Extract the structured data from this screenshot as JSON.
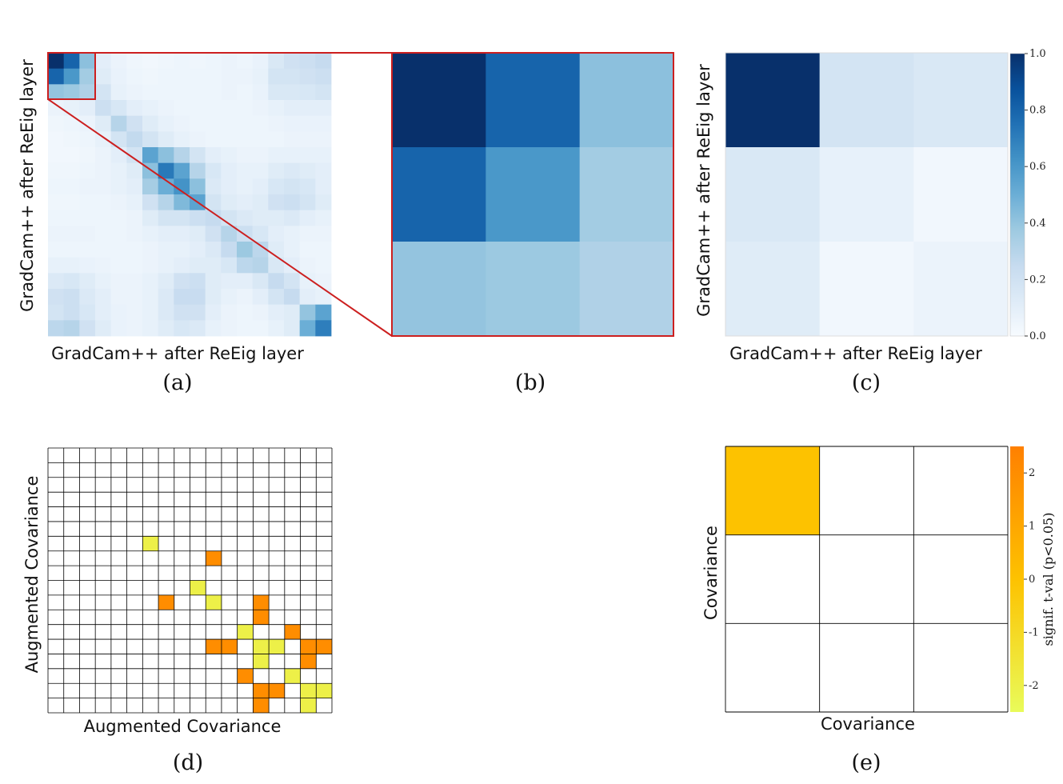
{
  "panels": {
    "a": {
      "caption": "(a)",
      "xlabel": "GradCam++ after ReEig layer",
      "ylabel": "GradCam++ after ReEig layer"
    },
    "b": {
      "caption": "(b)"
    },
    "c": {
      "caption": "(c)",
      "xlabel": "GradCam++ after ReEig layer",
      "ylabel": "GradCam++ after ReEig layer",
      "colorbar_ticks": [
        "1.0",
        "0.8",
        "0.6",
        "0.4",
        "0.2",
        "0.0"
      ]
    },
    "d": {
      "caption": "(d)",
      "xlabel": "Augmented Covariance",
      "ylabel": "Augmented Covariance"
    },
    "e": {
      "caption": "(e)",
      "xlabel": "Covariance",
      "ylabel": "Covariance",
      "colorbar_label": "signif. t-val (p<0.05)",
      "colorbar_ticks": [
        "2",
        "1",
        "0",
        "-1",
        "-2"
      ]
    }
  },
  "colors": {
    "heatmap_low": "#f7fbff",
    "heatmap_high": "#08306b",
    "highlight_box": "#cc1f1f",
    "grid_line": "#000000",
    "tval_neg": "#e9fb5a",
    "tval_zero": "#fdc200",
    "tval_pos": "#ff8000"
  },
  "chart_data": [
    {
      "panel": "a",
      "type": "heatmap",
      "colormap": "Blues",
      "zlim": [
        0,
        1
      ],
      "highlight": {
        "rows": [
          0,
          2
        ],
        "cols": [
          0,
          2
        ]
      },
      "z": [
        [
          1.0,
          0.8,
          0.42,
          0.1,
          0.06,
          0.04,
          0.03,
          0.04,
          0.05,
          0.04,
          0.05,
          0.06,
          0.05,
          0.07,
          0.15,
          0.2,
          0.22,
          0.25
        ],
        [
          0.8,
          0.6,
          0.36,
          0.12,
          0.07,
          0.05,
          0.04,
          0.05,
          0.05,
          0.05,
          0.05,
          0.06,
          0.06,
          0.08,
          0.18,
          0.18,
          0.2,
          0.22
        ],
        [
          0.4,
          0.38,
          0.32,
          0.18,
          0.08,
          0.06,
          0.05,
          0.05,
          0.05,
          0.05,
          0.05,
          0.06,
          0.05,
          0.07,
          0.15,
          0.15,
          0.16,
          0.18
        ],
        [
          0.06,
          0.08,
          0.1,
          0.22,
          0.16,
          0.1,
          0.08,
          0.06,
          0.05,
          0.05,
          0.05,
          0.05,
          0.05,
          0.06,
          0.08,
          0.1,
          0.1,
          0.1
        ],
        [
          0.04,
          0.05,
          0.06,
          0.12,
          0.3,
          0.2,
          0.12,
          0.08,
          0.06,
          0.05,
          0.05,
          0.05,
          0.05,
          0.05,
          0.06,
          0.07,
          0.07,
          0.07
        ],
        [
          0.03,
          0.04,
          0.05,
          0.08,
          0.18,
          0.26,
          0.18,
          0.12,
          0.08,
          0.06,
          0.05,
          0.05,
          0.05,
          0.05,
          0.05,
          0.06,
          0.06,
          0.06
        ],
        [
          0.03,
          0.03,
          0.04,
          0.06,
          0.1,
          0.18,
          0.55,
          0.42,
          0.3,
          0.18,
          0.1,
          0.08,
          0.06,
          0.06,
          0.08,
          0.08,
          0.08,
          0.08
        ],
        [
          0.04,
          0.04,
          0.05,
          0.06,
          0.08,
          0.12,
          0.42,
          0.72,
          0.55,
          0.3,
          0.16,
          0.1,
          0.08,
          0.08,
          0.12,
          0.14,
          0.12,
          0.1
        ],
        [
          0.05,
          0.05,
          0.06,
          0.06,
          0.08,
          0.1,
          0.35,
          0.5,
          0.62,
          0.42,
          0.14,
          0.1,
          0.08,
          0.1,
          0.16,
          0.18,
          0.16,
          0.1
        ],
        [
          0.04,
          0.04,
          0.05,
          0.05,
          0.06,
          0.08,
          0.2,
          0.3,
          0.45,
          0.55,
          0.18,
          0.12,
          0.1,
          0.12,
          0.2,
          0.22,
          0.18,
          0.12
        ],
        [
          0.05,
          0.05,
          0.05,
          0.05,
          0.05,
          0.06,
          0.12,
          0.18,
          0.18,
          0.22,
          0.25,
          0.18,
          0.14,
          0.12,
          0.12,
          0.14,
          0.1,
          0.08
        ],
        [
          0.06,
          0.06,
          0.06,
          0.05,
          0.05,
          0.06,
          0.08,
          0.1,
          0.1,
          0.12,
          0.2,
          0.3,
          0.22,
          0.16,
          0.1,
          0.08,
          0.06,
          0.06
        ],
        [
          0.05,
          0.05,
          0.05,
          0.05,
          0.05,
          0.05,
          0.06,
          0.08,
          0.08,
          0.1,
          0.14,
          0.25,
          0.38,
          0.28,
          0.12,
          0.08,
          0.05,
          0.05
        ],
        [
          0.08,
          0.08,
          0.07,
          0.06,
          0.05,
          0.05,
          0.06,
          0.08,
          0.1,
          0.12,
          0.12,
          0.16,
          0.28,
          0.3,
          0.15,
          0.1,
          0.06,
          0.05
        ],
        [
          0.14,
          0.16,
          0.12,
          0.08,
          0.06,
          0.06,
          0.08,
          0.12,
          0.2,
          0.22,
          0.12,
          0.1,
          0.1,
          0.15,
          0.25,
          0.18,
          0.08,
          0.06
        ],
        [
          0.2,
          0.22,
          0.14,
          0.1,
          0.06,
          0.06,
          0.08,
          0.14,
          0.24,
          0.24,
          0.12,
          0.08,
          0.06,
          0.1,
          0.18,
          0.25,
          0.1,
          0.08
        ],
        [
          0.18,
          0.22,
          0.16,
          0.1,
          0.07,
          0.06,
          0.08,
          0.14,
          0.2,
          0.2,
          0.1,
          0.06,
          0.05,
          0.06,
          0.1,
          0.12,
          0.4,
          0.55
        ],
        [
          0.28,
          0.3,
          0.2,
          0.12,
          0.07,
          0.06,
          0.08,
          0.12,
          0.16,
          0.14,
          0.08,
          0.06,
          0.05,
          0.05,
          0.08,
          0.12,
          0.5,
          0.7
        ]
      ]
    },
    {
      "panel": "b",
      "type": "heatmap",
      "colormap": "Blues",
      "zlim": [
        0,
        1
      ],
      "z": [
        [
          1.0,
          0.8,
          0.42
        ],
        [
          0.8,
          0.6,
          0.36
        ],
        [
          0.4,
          0.38,
          0.32
        ]
      ]
    },
    {
      "panel": "c",
      "type": "heatmap",
      "colormap": "Blues",
      "zlim": [
        0,
        1
      ],
      "colorbar_ticks": [
        1.0,
        0.8,
        0.6,
        0.4,
        0.2,
        0.0
      ],
      "z": [
        [
          1.0,
          0.18,
          0.15
        ],
        [
          0.15,
          0.08,
          0.03
        ],
        [
          0.12,
          0.03,
          0.06
        ]
      ]
    },
    {
      "panel": "d",
      "type": "heatmap",
      "colormap": "signif_tval",
      "zlim": [
        -2.5,
        2.5
      ],
      "n": 18,
      "cells": [
        {
          "row": 6,
          "col": 6,
          "value": -2
        },
        {
          "row": 7,
          "col": 10,
          "value": 2
        },
        {
          "row": 9,
          "col": 9,
          "value": -2
        },
        {
          "row": 10,
          "col": 7,
          "value": 2
        },
        {
          "row": 10,
          "col": 10,
          "value": -2
        },
        {
          "row": 10,
          "col": 13,
          "value": 2
        },
        {
          "row": 11,
          "col": 13,
          "value": 2
        },
        {
          "row": 12,
          "col": 12,
          "value": -2
        },
        {
          "row": 12,
          "col": 15,
          "value": 2
        },
        {
          "row": 13,
          "col": 10,
          "value": 2
        },
        {
          "row": 13,
          "col": 11,
          "value": 2
        },
        {
          "row": 13,
          "col": 13,
          "value": -2
        },
        {
          "row": 13,
          "col": 14,
          "value": -2
        },
        {
          "row": 13,
          "col": 16,
          "value": 2
        },
        {
          "row": 13,
          "col": 17,
          "value": 2
        },
        {
          "row": 14,
          "col": 13,
          "value": -2
        },
        {
          "row": 14,
          "col": 16,
          "value": 2
        },
        {
          "row": 15,
          "col": 12,
          "value": 2
        },
        {
          "row": 15,
          "col": 15,
          "value": -2
        },
        {
          "row": 16,
          "col": 13,
          "value": 2
        },
        {
          "row": 16,
          "col": 14,
          "value": 2
        },
        {
          "row": 16,
          "col": 16,
          "value": -2
        },
        {
          "row": 16,
          "col": 17,
          "value": -2
        },
        {
          "row": 17,
          "col": 13,
          "value": 2
        },
        {
          "row": 17,
          "col": 16,
          "value": -2
        }
      ]
    },
    {
      "panel": "e",
      "type": "heatmap",
      "colormap": "signif_tval",
      "zlim": [
        -2.5,
        2.5
      ],
      "colorbar_ticks": [
        2,
        1,
        0,
        -1,
        -2
      ],
      "n": 3,
      "cells": [
        {
          "row": 0,
          "col": 0,
          "value": 0
        }
      ]
    }
  ]
}
